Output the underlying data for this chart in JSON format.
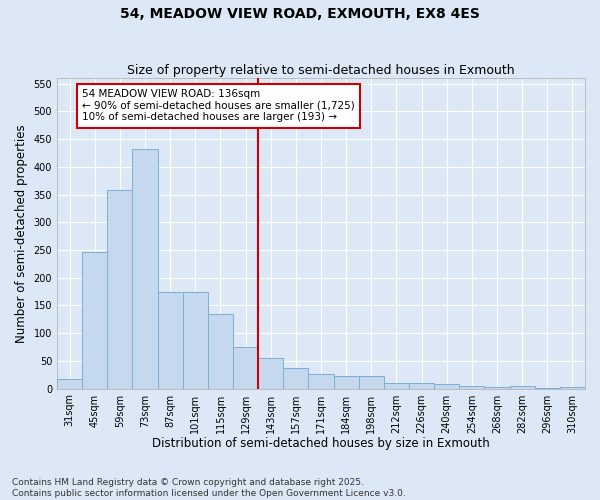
{
  "title": "54, MEADOW VIEW ROAD, EXMOUTH, EX8 4ES",
  "subtitle": "Size of property relative to semi-detached houses in Exmouth",
  "xlabel": "Distribution of semi-detached houses by size in Exmouth",
  "ylabel": "Number of semi-detached properties",
  "categories": [
    "31sqm",
    "45sqm",
    "59sqm",
    "73sqm",
    "87sqm",
    "101sqm",
    "115sqm",
    "129sqm",
    "143sqm",
    "157sqm",
    "171sqm",
    "184sqm",
    "198sqm",
    "212sqm",
    "226sqm",
    "240sqm",
    "254sqm",
    "268sqm",
    "282sqm",
    "296sqm",
    "310sqm"
  ],
  "values": [
    18,
    247,
    358,
    432,
    175,
    175,
    135,
    75,
    55,
    37,
    27,
    22,
    22,
    10,
    10,
    8,
    5,
    3,
    5,
    1,
    3
  ],
  "bar_color": "#c5d8ee",
  "bar_edge_color": "#7aafd4",
  "vertical_line_color": "#cc0000",
  "annotation_text": "54 MEADOW VIEW ROAD: 136sqm\n← 90% of semi-detached houses are smaller (1,725)\n10% of semi-detached houses are larger (193) →",
  "annotation_box_facecolor": "white",
  "annotation_box_edgecolor": "#cc0000",
  "footer_line1": "Contains HM Land Registry data © Crown copyright and database right 2025.",
  "footer_line2": "Contains public sector information licensed under the Open Government Licence v3.0.",
  "bg_color": "#dce8f5",
  "plot_bg_color": "#dce8f5",
  "ylim": [
    0,
    560
  ],
  "yticks": [
    0,
    50,
    100,
    150,
    200,
    250,
    300,
    350,
    400,
    450,
    500,
    550
  ],
  "title_fontsize": 10,
  "subtitle_fontsize": 9,
  "axis_label_fontsize": 8.5,
  "tick_fontsize": 7,
  "footer_fontsize": 6.5,
  "annot_fontsize": 7.5
}
